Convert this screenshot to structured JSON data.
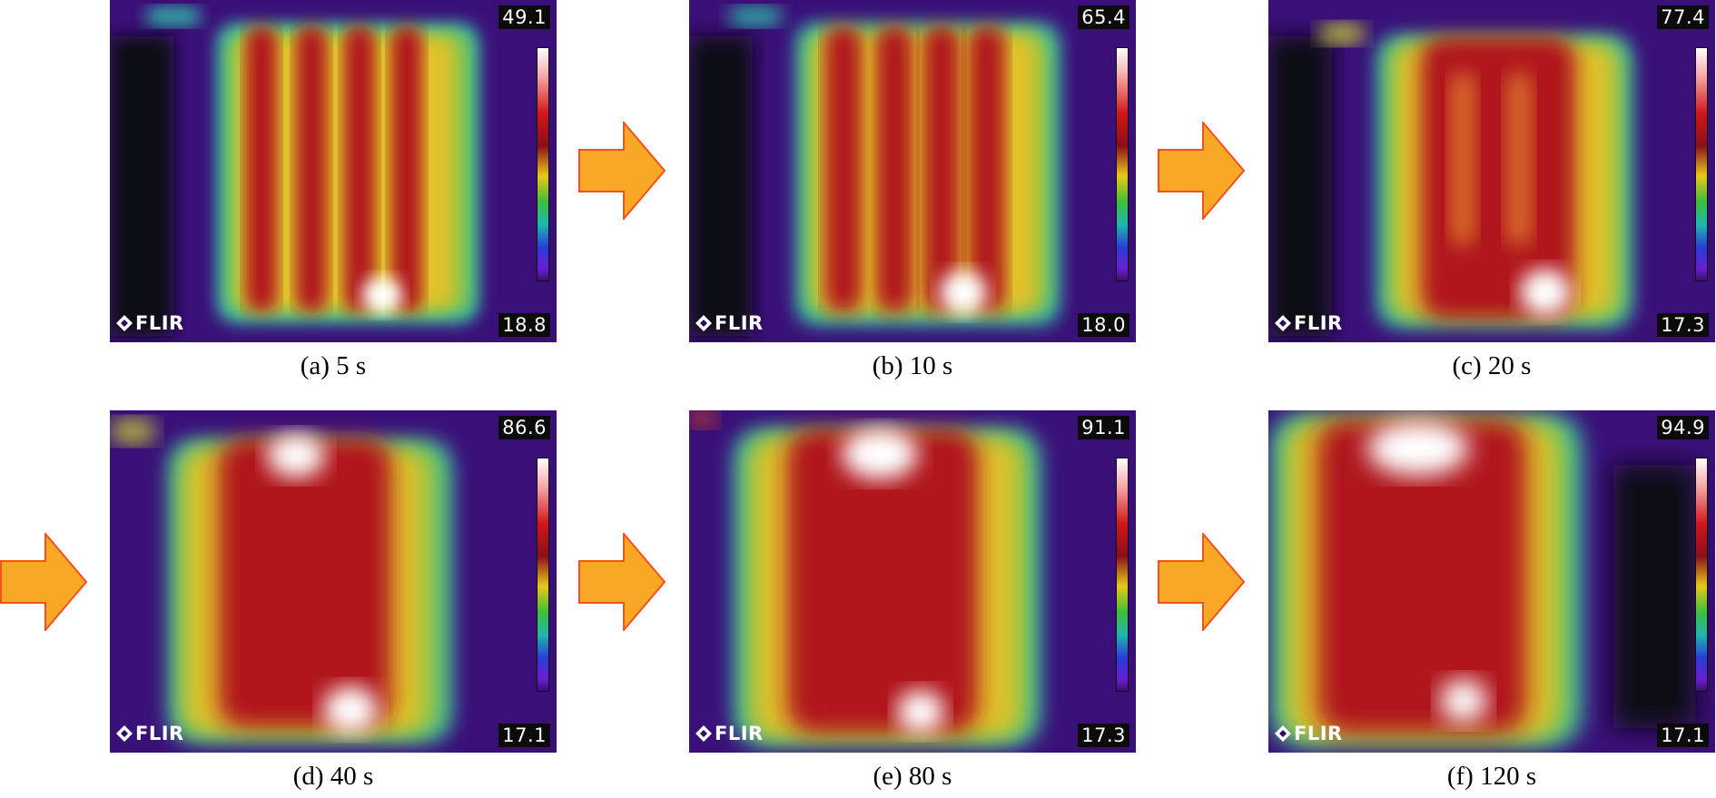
{
  "colors": {
    "arrow_fill": "#F9A825",
    "arrow_stroke": "#F4511E"
  },
  "palette": "iron",
  "brand": "FLIR",
  "panels": [
    {
      "caption": "(a) 5 s",
      "max": "49.1",
      "min": "18.8"
    },
    {
      "caption": "(b) 10 s",
      "max": "65.4",
      "min": "18.0"
    },
    {
      "caption": "(c) 20 s",
      "max": "77.4",
      "min": "17.3"
    },
    {
      "caption": "(d) 40 s",
      "max": "86.6",
      "min": "17.1"
    },
    {
      "caption": "(e) 80 s",
      "max": "91.1",
      "min": "17.3"
    },
    {
      "caption": "(f) 120 s",
      "max": "94.9",
      "min": "17.1"
    }
  ]
}
